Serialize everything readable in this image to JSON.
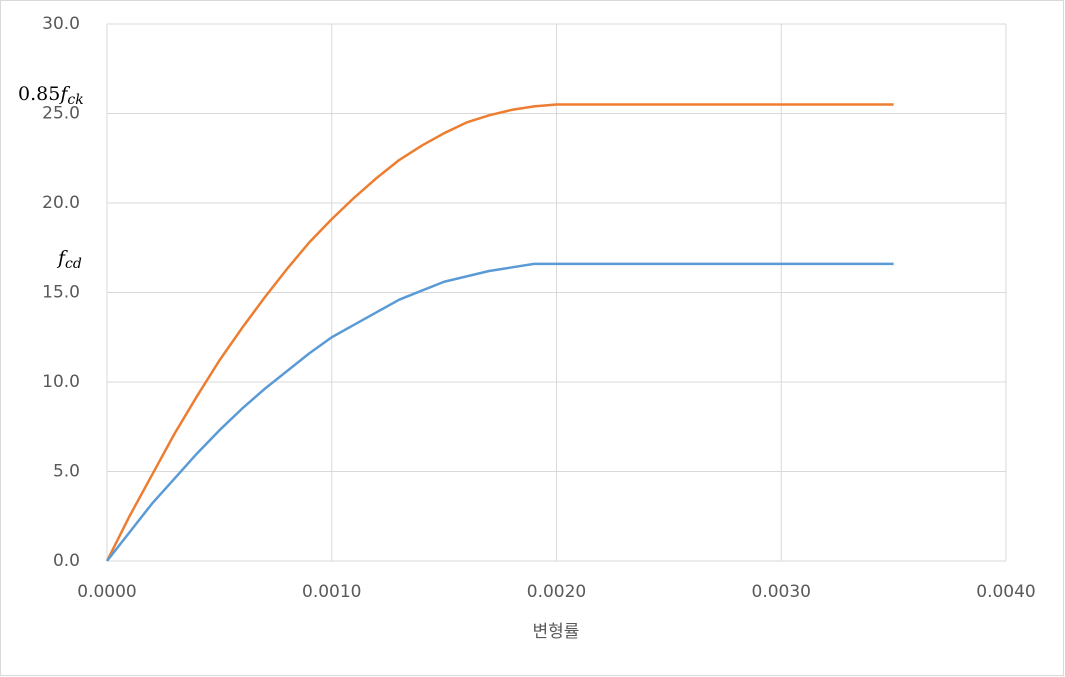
{
  "chart_data": {
    "type": "line",
    "x_label": "변형률",
    "annotations": [
      {
        "prefix": "0.85",
        "symbol": "f",
        "subscript": "ck"
      },
      {
        "symbol": "f",
        "subscript": "cd"
      }
    ],
    "x": [
      0,
      0.0001,
      0.0002,
      0.0003,
      0.0004,
      0.0005,
      0.0006,
      0.0007,
      0.0008,
      0.0009,
      0.001,
      0.0011,
      0.0012,
      0.0013,
      0.0014,
      0.0015,
      0.0016,
      0.0017,
      0.0018,
      0.0019,
      0.002,
      0.0035
    ],
    "series": [
      {
        "color": "#ed7d31",
        "values": [
          0,
          2.5,
          4.8,
          7.1,
          9.2,
          11.2,
          13.0,
          14.7,
          16.3,
          17.8,
          19.1,
          20.3,
          21.4,
          22.4,
          23.2,
          23.9,
          24.5,
          24.9,
          25.2,
          25.4,
          25.5,
          25.5
        ]
      },
      {
        "color": "#5b9bd5",
        "values": [
          0,
          1.6,
          3.2,
          4.6,
          6.0,
          7.3,
          8.5,
          9.6,
          10.6,
          11.6,
          12.5,
          13.2,
          13.9,
          14.6,
          15.1,
          15.6,
          15.9,
          16.2,
          16.4,
          16.6,
          16.6,
          16.6
        ]
      }
    ],
    "xlim": [
      0,
      0.004
    ],
    "xticks": [
      {
        "value": 0,
        "label": "0.0000"
      },
      {
        "value": 0.001,
        "label": "0.0010"
      },
      {
        "value": 0.002,
        "label": "0.0020"
      },
      {
        "value": 0.003,
        "label": "0.0030"
      },
      {
        "value": 0.004,
        "label": "0.0040"
      }
    ],
    "ylim": [
      0,
      30
    ],
    "yticks": [
      {
        "value": 0,
        "label": "0.0"
      },
      {
        "value": 5,
        "label": "5.0"
      },
      {
        "value": 10,
        "label": "10.0"
      },
      {
        "value": 15,
        "label": "15.0"
      },
      {
        "value": 20,
        "label": "20.0"
      },
      {
        "value": 25,
        "label": "25.0"
      },
      {
        "value": 30,
        "label": "30.0"
      }
    ],
    "grid": true
  }
}
